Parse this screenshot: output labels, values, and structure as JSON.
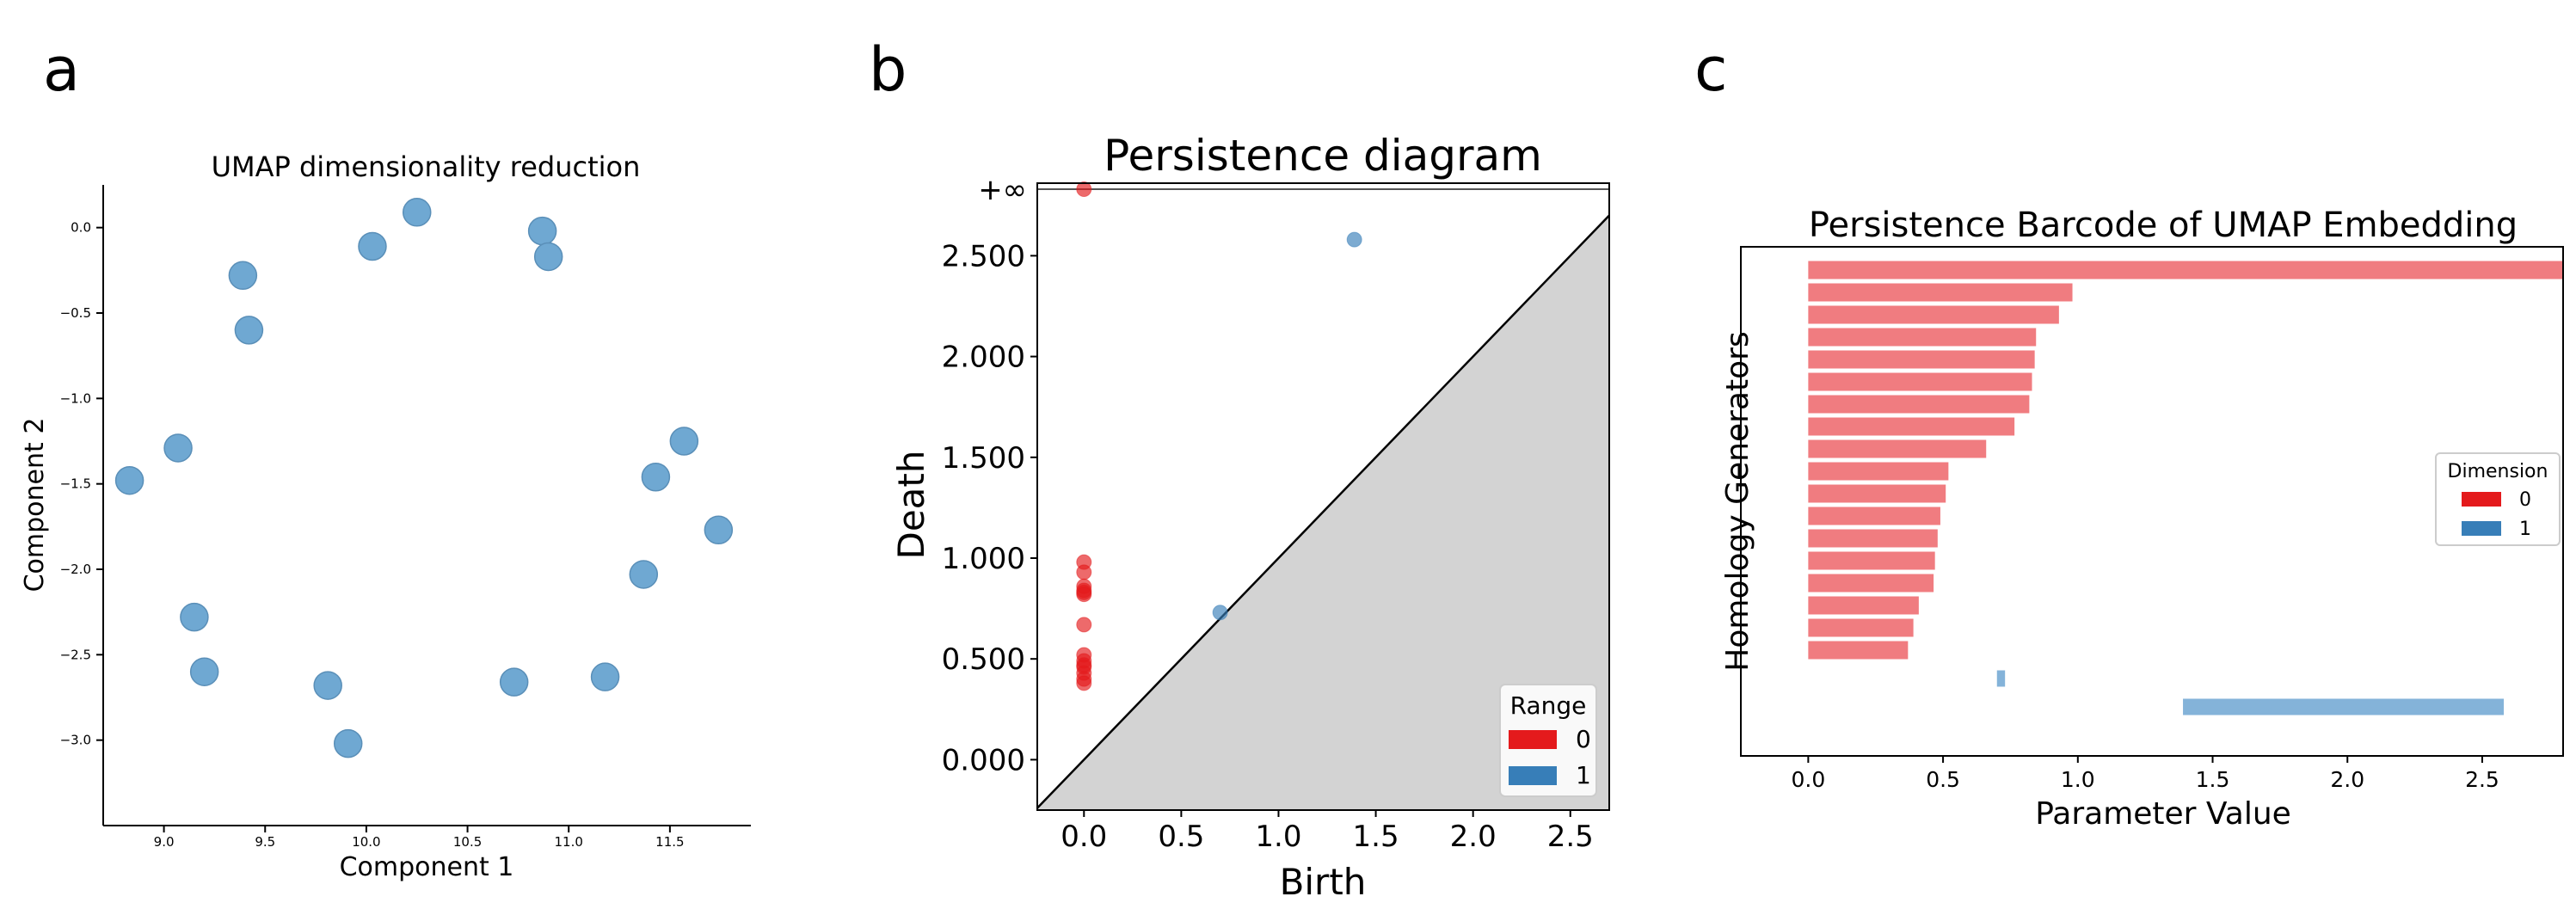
{
  "panel_labels": [
    "a",
    "b",
    "c"
  ],
  "chart_data": [
    {
      "type": "scatter",
      "title": "UMAP dimensionality reduction",
      "xlabel": "Component 1",
      "ylabel": "Component 2",
      "xlim": [
        8.7,
        11.9
      ],
      "ylim": [
        -3.5,
        0.25
      ],
      "xticks": [
        9.0,
        9.5,
        10.0,
        10.5,
        11.0,
        11.5
      ],
      "xtick_labels": [
        "9.0",
        "9.5",
        "10.0",
        "10.5",
        "11.0",
        "11.5"
      ],
      "yticks": [
        0.0,
        -0.5,
        -1.0,
        -1.5,
        -2.0,
        -2.5,
        -3.0
      ],
      "ytick_labels": [
        "0.0",
        "−0.5",
        "−1.0",
        "−1.5",
        "−2.0",
        "−2.5",
        "−3.0"
      ],
      "grid": false,
      "color": "#6fa8d2",
      "points": [
        {
          "x": 10.25,
          "y": 0.09
        },
        {
          "x": 10.03,
          "y": -0.11
        },
        {
          "x": 10.87,
          "y": -0.02
        },
        {
          "x": 10.9,
          "y": -0.17
        },
        {
          "x": 9.39,
          "y": -0.28
        },
        {
          "x": 9.42,
          "y": -0.6
        },
        {
          "x": 9.07,
          "y": -1.29
        },
        {
          "x": 8.83,
          "y": -1.48
        },
        {
          "x": 11.57,
          "y": -1.25
        },
        {
          "x": 11.43,
          "y": -1.46
        },
        {
          "x": 11.74,
          "y": -1.77
        },
        {
          "x": 11.37,
          "y": -2.03
        },
        {
          "x": 9.15,
          "y": -2.28
        },
        {
          "x": 9.2,
          "y": -2.6
        },
        {
          "x": 9.81,
          "y": -2.68
        },
        {
          "x": 10.73,
          "y": -2.66
        },
        {
          "x": 11.18,
          "y": -2.63
        },
        {
          "x": 9.91,
          "y": -3.02
        }
      ]
    },
    {
      "type": "scatter",
      "title": "Persistence diagram",
      "xlabel": "Birth",
      "ylabel": "Death",
      "xlim": [
        -0.24,
        2.7
      ],
      "ylim": [
        -0.25,
        2.86
      ],
      "xticks": [
        0.0,
        0.5,
        1.0,
        1.5,
        2.0,
        2.5
      ],
      "xtick_labels": [
        "0.0",
        "0.5",
        "1.0",
        "1.5",
        "2.0",
        "2.5"
      ],
      "yticks": [
        0.0,
        0.5,
        1.0,
        1.5,
        2.0,
        2.5
      ],
      "ytick_labels": [
        "0.000",
        "0.500",
        "1.000",
        "1.500",
        "2.000",
        "2.500"
      ],
      "infinity_label": "+∞",
      "infinity_y": 2.83,
      "diagonal": true,
      "grid": false,
      "legend": {
        "title": "Range",
        "position": "bottom-right",
        "entries": [
          {
            "label": "0",
            "color": "#e41a1c"
          },
          {
            "label": "1",
            "color": "#377eb8"
          }
        ]
      },
      "series": [
        {
          "name": "0",
          "color": "#e41a1c",
          "points": [
            {
              "x": 0.0,
              "y": 2.83
            },
            {
              "x": 0.0,
              "y": 0.98
            },
            {
              "x": 0.0,
              "y": 0.93
            },
            {
              "x": 0.0,
              "y": 0.86
            },
            {
              "x": 0.0,
              "y": 0.84
            },
            {
              "x": 0.0,
              "y": 0.83
            },
            {
              "x": 0.0,
              "y": 0.82
            },
            {
              "x": 0.0,
              "y": 0.67
            },
            {
              "x": 0.0,
              "y": 0.52
            },
            {
              "x": 0.0,
              "y": 0.49
            },
            {
              "x": 0.0,
              "y": 0.47
            },
            {
              "x": 0.0,
              "y": 0.46
            },
            {
              "x": 0.0,
              "y": 0.43
            },
            {
              "x": 0.0,
              "y": 0.4
            },
            {
              "x": 0.0,
              "y": 0.38
            }
          ]
        },
        {
          "name": "1",
          "color": "#377eb8",
          "points": [
            {
              "x": 0.7,
              "y": 0.73
            },
            {
              "x": 1.39,
              "y": 2.58
            }
          ]
        }
      ]
    },
    {
      "type": "bar",
      "orientation": "horizontal",
      "title": "Persistence Barcode of UMAP Embedding",
      "xlabel": "Parameter Value",
      "ylabel": "Homology Generators",
      "xlim": [
        -0.25,
        2.8
      ],
      "xticks": [
        0.0,
        0.5,
        1.0,
        1.5,
        2.0,
        2.5
      ],
      "xtick_labels": [
        "0.0",
        "0.5",
        "1.0",
        "1.5",
        "2.0",
        "2.5"
      ],
      "grid": false,
      "legend": {
        "title": "Dimension",
        "position": "center-right",
        "entries": [
          {
            "label": "0",
            "color": "#e41a1c"
          },
          {
            "label": "1",
            "color": "#377eb8"
          }
        ]
      },
      "bars": [
        {
          "dim": 0,
          "start": 0.0,
          "end": 2.8
        },
        {
          "dim": 0,
          "start": 0.0,
          "end": 0.98
        },
        {
          "dim": 0,
          "start": 0.0,
          "end": 0.93
        },
        {
          "dim": 0,
          "start": 0.0,
          "end": 0.845
        },
        {
          "dim": 0,
          "start": 0.0,
          "end": 0.84
        },
        {
          "dim": 0,
          "start": 0.0,
          "end": 0.83
        },
        {
          "dim": 0,
          "start": 0.0,
          "end": 0.82
        },
        {
          "dim": 0,
          "start": 0.0,
          "end": 0.765
        },
        {
          "dim": 0,
          "start": 0.0,
          "end": 0.66
        },
        {
          "dim": 0,
          "start": 0.0,
          "end": 0.52
        },
        {
          "dim": 0,
          "start": 0.0,
          "end": 0.51
        },
        {
          "dim": 0,
          "start": 0.0,
          "end": 0.49
        },
        {
          "dim": 0,
          "start": 0.0,
          "end": 0.48
        },
        {
          "dim": 0,
          "start": 0.0,
          "end": 0.47
        },
        {
          "dim": 0,
          "start": 0.0,
          "end": 0.465
        },
        {
          "dim": 0,
          "start": 0.0,
          "end": 0.41
        },
        {
          "dim": 0,
          "start": 0.0,
          "end": 0.39
        },
        {
          "dim": 0,
          "start": 0.0,
          "end": 0.37
        },
        {
          "dim": 1,
          "start": 0.7,
          "end": 0.73
        },
        {
          "dim": 1,
          "start": 1.39,
          "end": 2.58
        }
      ]
    }
  ]
}
